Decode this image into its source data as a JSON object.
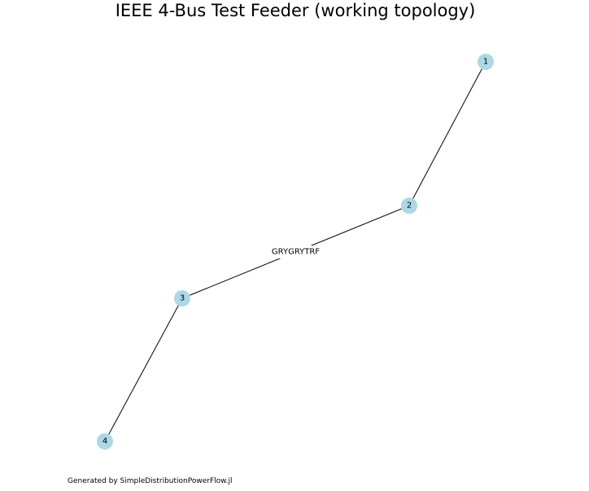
{
  "title": "IEEE 4-Bus Test Feeder (working topology)",
  "footer": "Generated by SimpleDistributionPowerFlow.jl",
  "colors": {
    "node_fill": "#add8e6",
    "edge_stroke": "#000000",
    "background": "#ffffff"
  },
  "graph": {
    "nodes": [
      {
        "id": "1",
        "label": "1"
      },
      {
        "id": "2",
        "label": "2"
      },
      {
        "id": "3",
        "label": "3"
      },
      {
        "id": "4",
        "label": "4"
      }
    ],
    "edges": [
      {
        "from": "1",
        "to": "2",
        "label": ""
      },
      {
        "from": "2",
        "to": "3",
        "label": "GRYGRYTRF"
      },
      {
        "from": "3",
        "to": "4",
        "label": ""
      }
    ]
  }
}
